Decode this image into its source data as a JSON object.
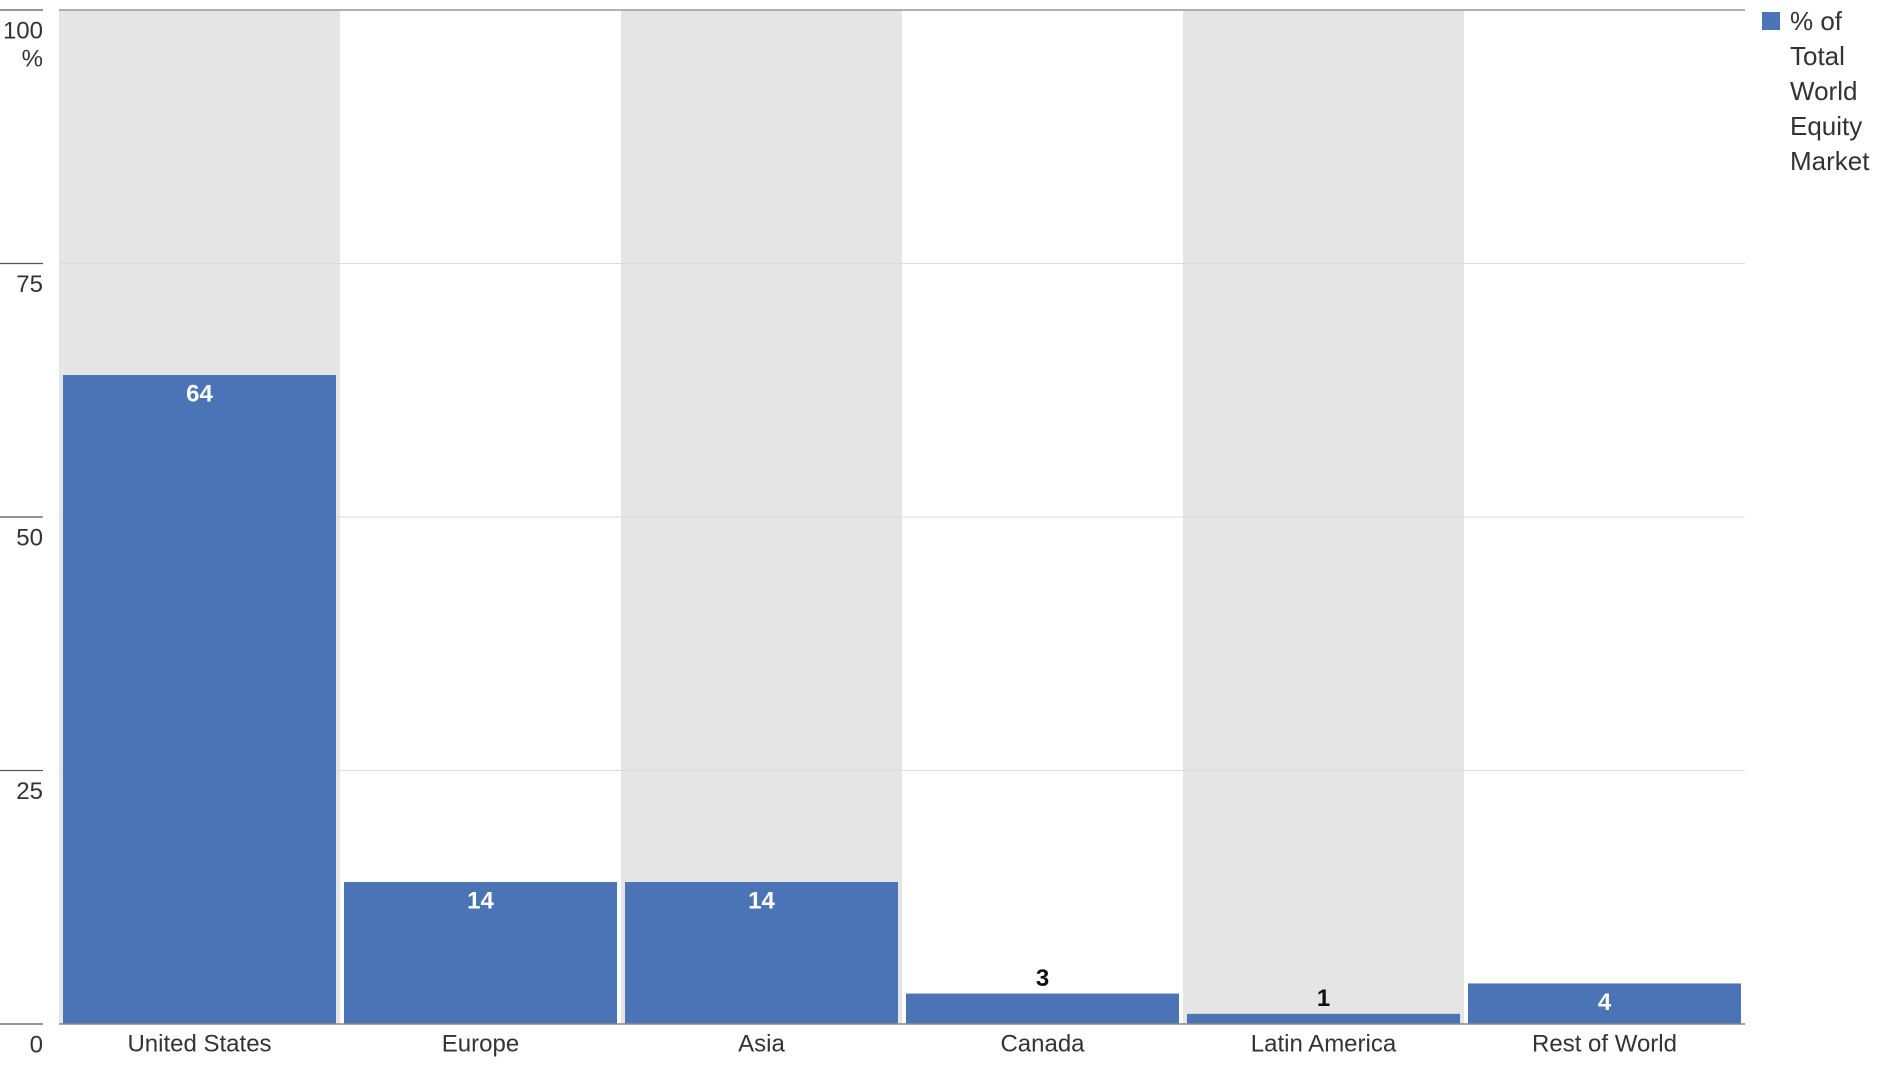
{
  "chart_data": {
    "type": "bar",
    "categories": [
      "United States",
      "Europe",
      "Asia",
      "Canada",
      "Latin America",
      "Rest of World"
    ],
    "series": [
      {
        "name": "% of Total World Equity Market",
        "color": "#4a74b5",
        "values": [
          64,
          14,
          14,
          3,
          1,
          4
        ]
      }
    ],
    "ylim": [
      0,
      100
    ],
    "yticks": [
      0,
      25,
      50,
      75,
      100
    ],
    "y_unit": "%",
    "grid": true,
    "legend": "top-right"
  }
}
